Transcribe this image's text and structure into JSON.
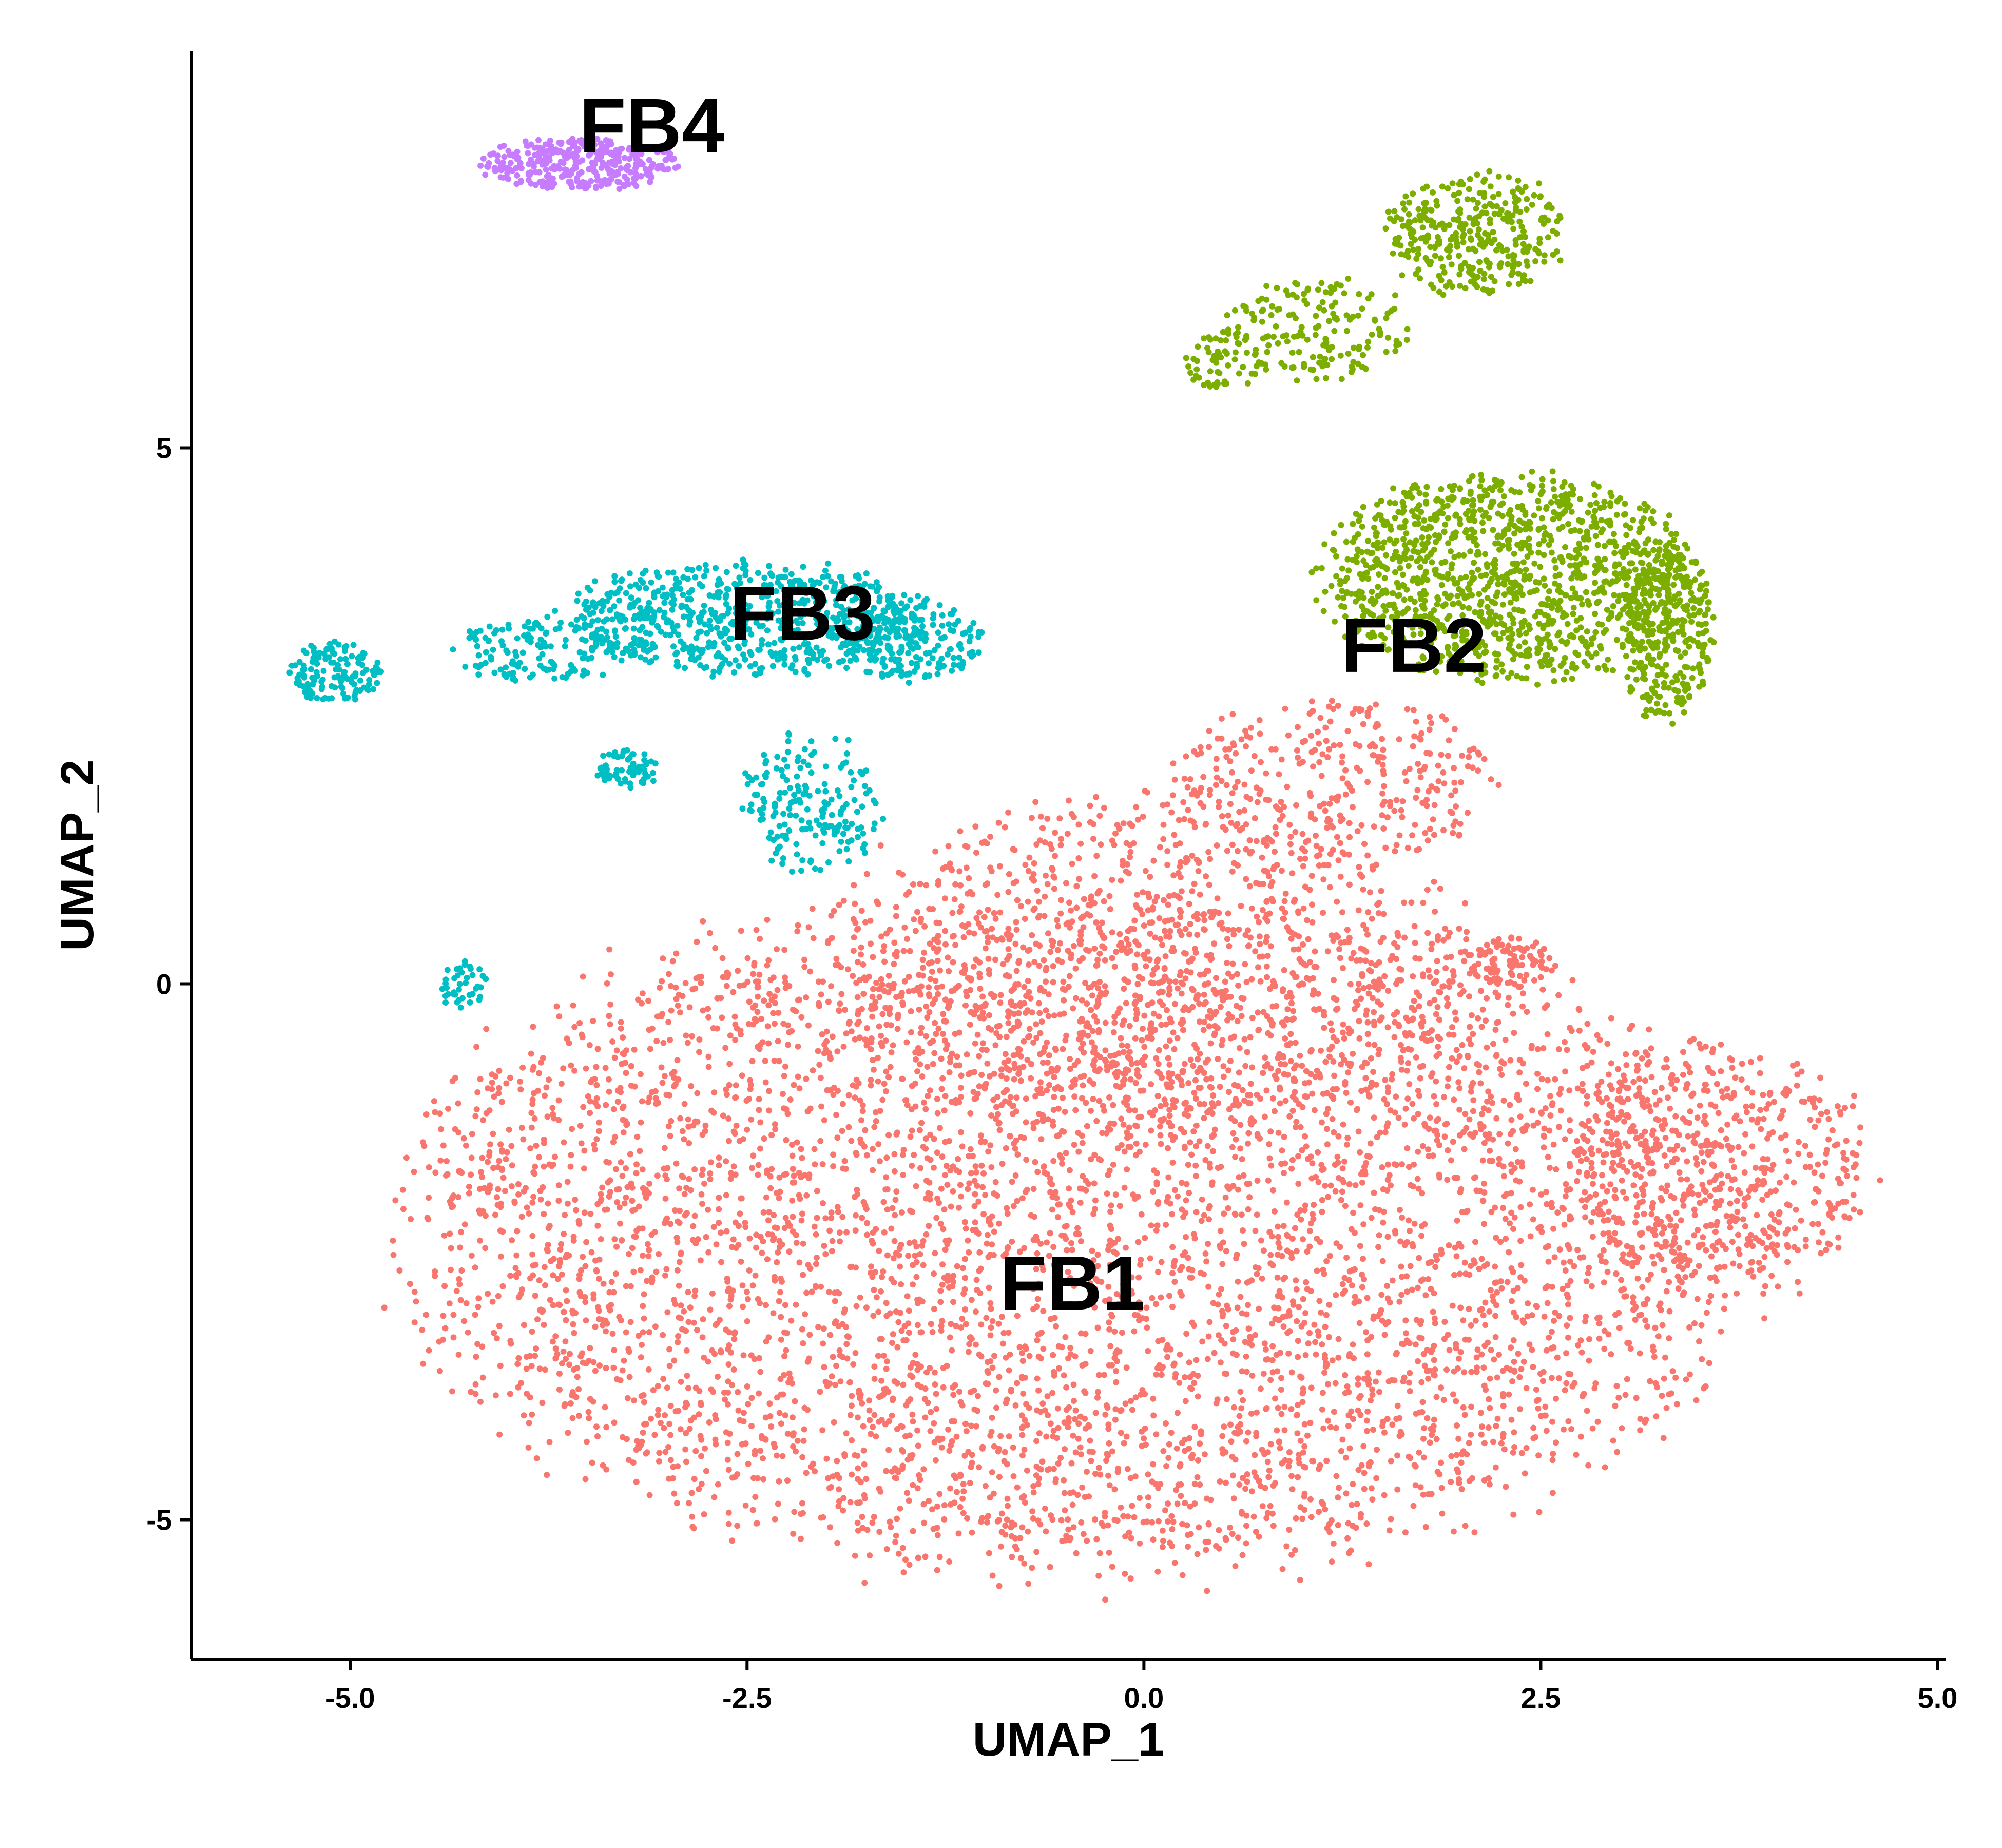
{
  "chart_data": {
    "type": "scatter",
    "xlabel": "UMAP_1",
    "ylabel": "UMAP_2",
    "xlim": [
      -6.0,
      5.05
    ],
    "ylim": [
      -6.3,
      8.7
    ],
    "x_ticks": [
      -5.0,
      -2.5,
      0.0,
      2.5,
      5.0
    ],
    "x_tick_labels": [
      "-5.0",
      "-2.5",
      "0.0",
      "2.5",
      "5.0"
    ],
    "y_ticks": [
      -5,
      0,
      5
    ],
    "y_tick_labels": [
      "-5",
      "0",
      "5"
    ],
    "grid": false,
    "legend": "none",
    "clusters": [
      {
        "label": "FB1",
        "color": "#F8766D",
        "label_pos": [
          -0.45,
          -2.8
        ],
        "regions": [
          {
            "cx": -0.4,
            "cy": -2.3,
            "rx": 4.4,
            "ry": 3.3,
            "n": 5200
          },
          {
            "cx": 0.0,
            "cy": 0.2,
            "rx": 2.1,
            "ry": 1.7,
            "n": 900
          },
          {
            "cx": 1.2,
            "cy": 1.9,
            "rx": 1.1,
            "ry": 0.8,
            "n": 300
          },
          {
            "cx": 3.6,
            "cy": -1.7,
            "rx": 1.0,
            "ry": 1.2,
            "n": 550
          },
          {
            "cx": 2.3,
            "cy": 0.2,
            "rx": 0.3,
            "ry": 0.25,
            "n": 90
          }
        ]
      },
      {
        "label": "FB2",
        "color": "#7CAE00",
        "label_pos": [
          1.7,
          3.15
        ],
        "regions": [
          {
            "cx": 2.3,
            "cy": 3.8,
            "rx": 1.2,
            "ry": 1.0,
            "n": 1200
          },
          {
            "cx": 3.3,
            "cy": 3.3,
            "rx": 0.3,
            "ry": 0.9,
            "n": 320
          },
          {
            "cx": 2.1,
            "cy": 7.0,
            "rx": 0.6,
            "ry": 0.6,
            "n": 330
          },
          {
            "cx": 1.1,
            "cy": 6.1,
            "rx": 0.6,
            "ry": 0.5,
            "n": 160
          },
          {
            "cx": 0.5,
            "cy": 5.8,
            "rx": 0.25,
            "ry": 0.3,
            "n": 60
          }
        ]
      },
      {
        "label": "FB3",
        "color": "#00BFC4",
        "label_pos": [
          -2.15,
          3.45
        ],
        "regions": [
          {
            "cx": -2.5,
            "cy": 3.4,
            "rx": 1.2,
            "ry": 0.55,
            "n": 700
          },
          {
            "cx": -1.5,
            "cy": 3.2,
            "rx": 0.5,
            "ry": 0.4,
            "n": 200
          },
          {
            "cx": -2.1,
            "cy": 1.7,
            "rx": 0.45,
            "ry": 0.7,
            "n": 180
          },
          {
            "cx": -3.25,
            "cy": 2.0,
            "rx": 0.2,
            "ry": 0.2,
            "n": 60
          },
          {
            "cx": -3.8,
            "cy": 3.1,
            "rx": 0.6,
            "ry": 0.3,
            "n": 130
          },
          {
            "cx": -5.1,
            "cy": 2.9,
            "rx": 0.3,
            "ry": 0.3,
            "n": 130
          },
          {
            "cx": -4.3,
            "cy": 0.0,
            "rx": 0.15,
            "ry": 0.25,
            "n": 40
          }
        ]
      },
      {
        "label": "FB4",
        "color": "#C77CFF",
        "label_pos": [
          -3.1,
          8.0
        ],
        "regions": [
          {
            "cx": -3.55,
            "cy": 7.65,
            "rx": 0.65,
            "ry": 0.25,
            "n": 360
          }
        ]
      }
    ]
  }
}
